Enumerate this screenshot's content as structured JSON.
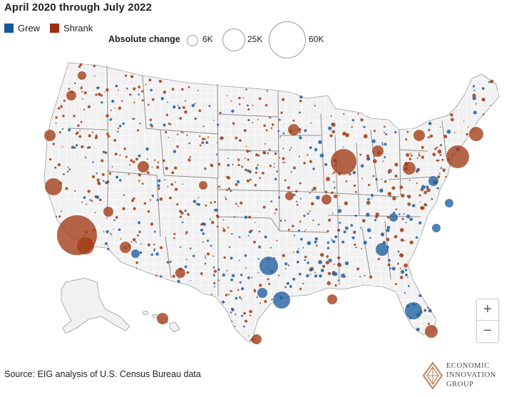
{
  "title": "April 2020 through July 2022",
  "legend": {
    "grew_label": "Grew",
    "shrank_label": "Shrank",
    "grew_color": "#17579c",
    "shrank_color": "#9c2f12"
  },
  "size_legend": {
    "label": "Absolute change",
    "ticks": [
      "6K",
      "25K",
      "60K"
    ],
    "values": [
      6000,
      25000,
      60000
    ]
  },
  "map_colors": {
    "land": "#f1f1f1",
    "county_border": "#ffffff",
    "state_border": "#8f8f8f",
    "grew_fill": "#1f5e9f",
    "shrank_fill": "#a23b14"
  },
  "zoom": {
    "in_label": "+",
    "out_label": "−"
  },
  "source": "Source: EIG analysis of U.S. Census Bureau data",
  "logo": {
    "line1": "ECONOMIC",
    "line2": "INNOVATION",
    "line3": "GROUP"
  }
}
